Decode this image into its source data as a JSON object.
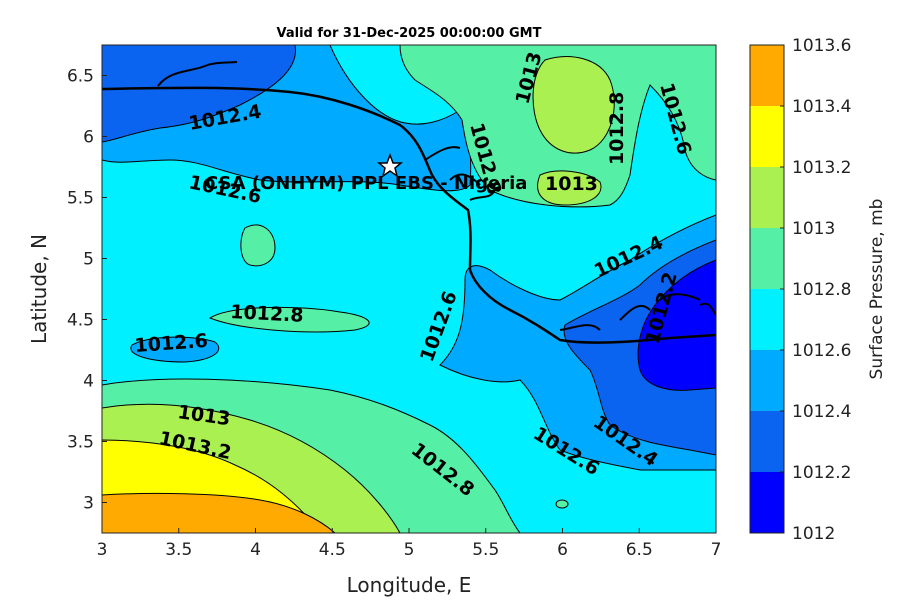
{
  "title": "Valid for 31-Dec-2025 00:00:00 GMT",
  "map": {
    "xlabel": "Longitude, E",
    "ylabel": "Latitude, N",
    "xlim": [
      3,
      7
    ],
    "ylim": [
      2.75,
      6.75
    ],
    "xticks": [
      "3",
      "3.5",
      "4",
      "4.5",
      "5",
      "5.5",
      "6",
      "6.5",
      "7"
    ],
    "yticks": [
      "3",
      "3.5",
      "4",
      "4.5",
      "5",
      "5.5",
      "6",
      "6.5"
    ],
    "site": {
      "label": "CSA (ONHYM) PPL EBS - Nigeria",
      "lon": 4.88,
      "lat": 5.76,
      "marker": "star-icon"
    },
    "contour_labels": [
      "1012.4",
      "1012.6",
      "1013",
      "1012.8",
      "1012.6",
      "1012.8",
      "1012.6",
      "1013",
      "1012.4",
      "1012.2",
      "1012.8",
      "1012.6",
      "1013",
      "1013.2",
      "1012.8",
      "1012.6",
      "1012.4"
    ]
  },
  "colorbar": {
    "label": "Surface Pressure, mb",
    "ticks": [
      "1012",
      "1012.2",
      "1012.4",
      "1012.6",
      "1012.8",
      "1013",
      "1013.2",
      "1013.4",
      "1013.6"
    ],
    "colors": [
      "#0000ff",
      "#0a64f0",
      "#00aaff",
      "#00f0ff",
      "#55f0a5",
      "#aaf050",
      "#ffff00",
      "#ffaa00",
      "#ff5500"
    ]
  }
}
